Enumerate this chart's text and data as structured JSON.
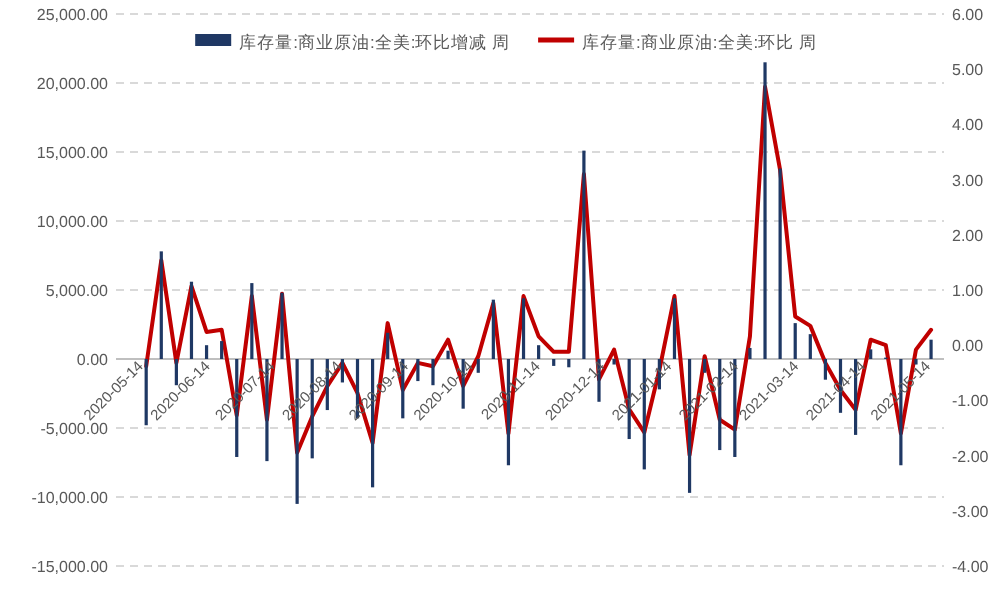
{
  "chart_data": {
    "type": "bar",
    "x": [
      "2020-05-15",
      "2020-05-22",
      "2020-05-29",
      "2020-06-05",
      "2020-06-12",
      "2020-06-19",
      "2020-06-26",
      "2020-07-03",
      "2020-07-10",
      "2020-07-17",
      "2020-07-24",
      "2020-07-31",
      "2020-08-07",
      "2020-08-14",
      "2020-08-21",
      "2020-08-28",
      "2020-09-04",
      "2020-09-11",
      "2020-09-18",
      "2020-09-25",
      "2020-10-02",
      "2020-10-09",
      "2020-10-16",
      "2020-10-23",
      "2020-10-30",
      "2020-11-06",
      "2020-11-13",
      "2020-11-20",
      "2020-11-27",
      "2020-12-04",
      "2020-12-11",
      "2020-12-18",
      "2020-12-25",
      "2021-01-01",
      "2021-01-08",
      "2021-01-15",
      "2021-01-22",
      "2021-01-29",
      "2021-02-05",
      "2021-02-12",
      "2021-02-19",
      "2021-02-26",
      "2021-03-05",
      "2021-03-12",
      "2021-03-19",
      "2021-03-26",
      "2021-04-02",
      "2021-04-09",
      "2021-04-16",
      "2021-04-23",
      "2021-04-30",
      "2021-05-07",
      "2021-05-14"
    ],
    "series": [
      {
        "name": "库存量:商业原油:全美:环比增减 周",
        "color": "#1f3864",
        "values": [
          -4800,
          7800,
          -1900,
          5600,
          1000,
          1300,
          -7100,
          5500,
          -7400,
          4800,
          -10500,
          -7200,
          -3700,
          -1700,
          -4300,
          -9300,
          1900,
          -4300,
          -1600,
          -1900,
          600,
          -3600,
          -1000,
          4300,
          -7700,
          4400,
          1000,
          -500,
          -600,
          15100,
          -3100,
          -400,
          -5800,
          -8000,
          -2200,
          4400,
          -9700,
          -1000,
          -6600,
          -7100,
          800,
          21500,
          13800,
          2600,
          1800,
          -1500,
          -3900,
          -5500,
          700,
          100,
          -7700,
          -400,
          1400
        ]
      },
      {
        "name": "库存量:商业原油:全美:环比 周",
        "type": "line",
        "axis": "y2",
        "color": "#c00000",
        "values": [
          -0.38,
          1.54,
          -0.32,
          1.07,
          0.24,
          0.28,
          -1.27,
          0.89,
          -1.35,
          0.93,
          -1.95,
          -1.29,
          -0.74,
          -0.32,
          -0.87,
          -1.77,
          0.4,
          -0.81,
          -0.32,
          -0.38,
          0.1,
          -0.74,
          -0.2,
          0.76,
          -1.6,
          0.89,
          0.16,
          -0.12,
          -0.12,
          3.1,
          -0.62,
          -0.08,
          -1.16,
          -1.58,
          -0.45,
          0.89,
          -1.99,
          -0.2,
          -1.35,
          -1.53,
          0.16,
          4.68,
          3.17,
          0.52,
          0.35,
          -0.32,
          -0.81,
          -1.17,
          0.1,
          0.0,
          -1.6,
          -0.08,
          0.28
        ]
      }
    ],
    "xlim": [
      "2020-05-01",
      "2021-05-20"
    ],
    "xticks": [
      "2020-05-14",
      "2020-06-14",
      "2020-07-14",
      "2020-08-14",
      "2020-09-14",
      "2020-10-14",
      "2020-11-14",
      "2020-12-14",
      "2021-01-14",
      "2021-02-14",
      "2021-03-14",
      "2021-04-14",
      "2021-05-14"
    ],
    "ylim": [
      -15000,
      25000
    ],
    "yticks": [
      {
        "value": -15000,
        "label": "-15,000.00"
      },
      {
        "value": -10000,
        "label": "-10,000.00"
      },
      {
        "value": -5000,
        "label": "-5,000.00"
      },
      {
        "value": 0,
        "label": "0.00"
      },
      {
        "value": 5000,
        "label": "5,000.00"
      },
      {
        "value": 10000,
        "label": "10,000.00"
      },
      {
        "value": 15000,
        "label": "15,000.00"
      },
      {
        "value": 20000,
        "label": "20,000.00"
      },
      {
        "value": 25000,
        "label": "25,000.00"
      }
    ],
    "y2lim": [
      -4,
      6
    ],
    "y2ticks": [
      {
        "value": -4,
        "label": "-4.00"
      },
      {
        "value": -3,
        "label": "-3.00"
      },
      {
        "value": -2,
        "label": "-2.00"
      },
      {
        "value": -1,
        "label": "-1.00"
      },
      {
        "value": 0,
        "label": "0.00"
      },
      {
        "value": 1,
        "label": "1.00"
      },
      {
        "value": 2,
        "label": "2.00"
      },
      {
        "value": 3,
        "label": "3.00"
      },
      {
        "value": 4,
        "label": "4.00"
      },
      {
        "value": 5,
        "label": "5.00"
      },
      {
        "value": 6,
        "label": "6.00"
      }
    ],
    "grid": "y",
    "legend": "top",
    "marker": "none",
    "line_style": "solid"
  }
}
